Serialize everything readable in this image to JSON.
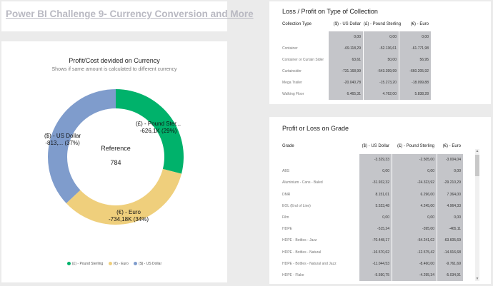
{
  "report": {
    "title": "Power BI Challenge 9- Currency Conversion and More"
  },
  "donut": {
    "title": "Profit/Cost devided on Currency",
    "subtitle": "Shows if same amount is calculated to different currency",
    "center_label": "Reference",
    "center_value": "784",
    "labels": {
      "gbp": [
        "(£) - Pound Ster...",
        "-626,1K (29%)"
      ],
      "usd": [
        "($) - US Dollar",
        "-813,... (37%)"
      ],
      "eur": [
        "(€) - Euro",
        "-734,18K (34%)"
      ]
    },
    "colors": {
      "gbp": "#00b26b",
      "eur": "#efcf7c",
      "usd": "#7f9ccc"
    },
    "legend": [
      "(£) - Pound Sterling",
      "(€) - Euro",
      "($) - US Dollar"
    ]
  },
  "chart_data": {
    "type": "pie",
    "title": "Profit/Cost devided on Currency",
    "categories": [
      "(£) - Pound Sterling",
      "(€) - Euro",
      "($) - US Dollar"
    ],
    "values": [
      -626.1,
      -734.18,
      -813
    ],
    "percentages": [
      29,
      34,
      37
    ],
    "center_value": 784
  },
  "table1": {
    "title": "Loss / Profit on Type of Collection",
    "headers": [
      "Collection Type",
      "($) - US Dollar",
      "(£) - Pound Sterling",
      "(€) - Euro"
    ],
    "rows": [
      {
        "label": "",
        "values": [
          "0,00",
          "0,00",
          "0,00"
        ]
      },
      {
        "label": "Container",
        "values": [
          "-69.118,29",
          "-52.136,61",
          "-61.771,98"
        ]
      },
      {
        "label": "Container or Curtain Sider",
        "values": [
          "63,61",
          "50,00",
          "56,95"
        ]
      },
      {
        "label": "Curtainsider",
        "values": [
          "-731.168,99",
          "-543.399,99",
          "-660.205,92"
        ]
      },
      {
        "label": "Mega Trailer",
        "values": [
          "-20.040,78",
          "-15.273,20",
          "-18.099,88"
        ]
      },
      {
        "label": "Walking Floor",
        "values": [
          "6.465,31",
          "4.762,00",
          "5.838,28"
        ]
      }
    ]
  },
  "table2": {
    "title": "Profit or Loss on Grade",
    "headers": [
      "Grade",
      "($) - US Dollar",
      "(£) - Pound Sterling",
      "(€) - Euro"
    ],
    "rows": [
      {
        "label": "",
        "values": [
          "-3.329,33",
          "-2.505,00",
          "-3.004,04"
        ]
      },
      {
        "label": "ABS",
        "values": [
          "0,00",
          "0,00",
          "0,00"
        ]
      },
      {
        "label": "Aluminium - Cans - Baled",
        "values": [
          "-31.932,32",
          "-24.323,92",
          "-29.210,29"
        ]
      },
      {
        "label": "DMR",
        "values": [
          "8.151,01",
          "6.296,00",
          "7.364,00"
        ]
      },
      {
        "label": "EOL (End of Line)",
        "values": [
          "5.523,48",
          "4.245,00",
          "4.964,33"
        ]
      },
      {
        "label": "Film",
        "values": [
          "0,00",
          "0,00",
          "0,00"
        ]
      },
      {
        "label": "HDPE",
        "values": [
          "-515,24",
          "-395,00",
          "-465,11"
        ]
      },
      {
        "label": "HDPE - Bottles - Jazz",
        "values": [
          "-70.448,17",
          "-54.241,02",
          "-63.605,69"
        ]
      },
      {
        "label": "HDPE - Bottles - Natural",
        "values": [
          "-16.570,62",
          "-12.575,42",
          "-14.916,68"
        ]
      },
      {
        "label": "HDPE - Bottles - Natural and Jazz",
        "values": [
          "-11.044,53",
          "-8.460,00",
          "-9.761,69"
        ]
      },
      {
        "label": "HDPE - Flake",
        "values": [
          "-5.590,75",
          "-4.295,34",
          "-5.034,91"
        ]
      }
    ]
  }
}
